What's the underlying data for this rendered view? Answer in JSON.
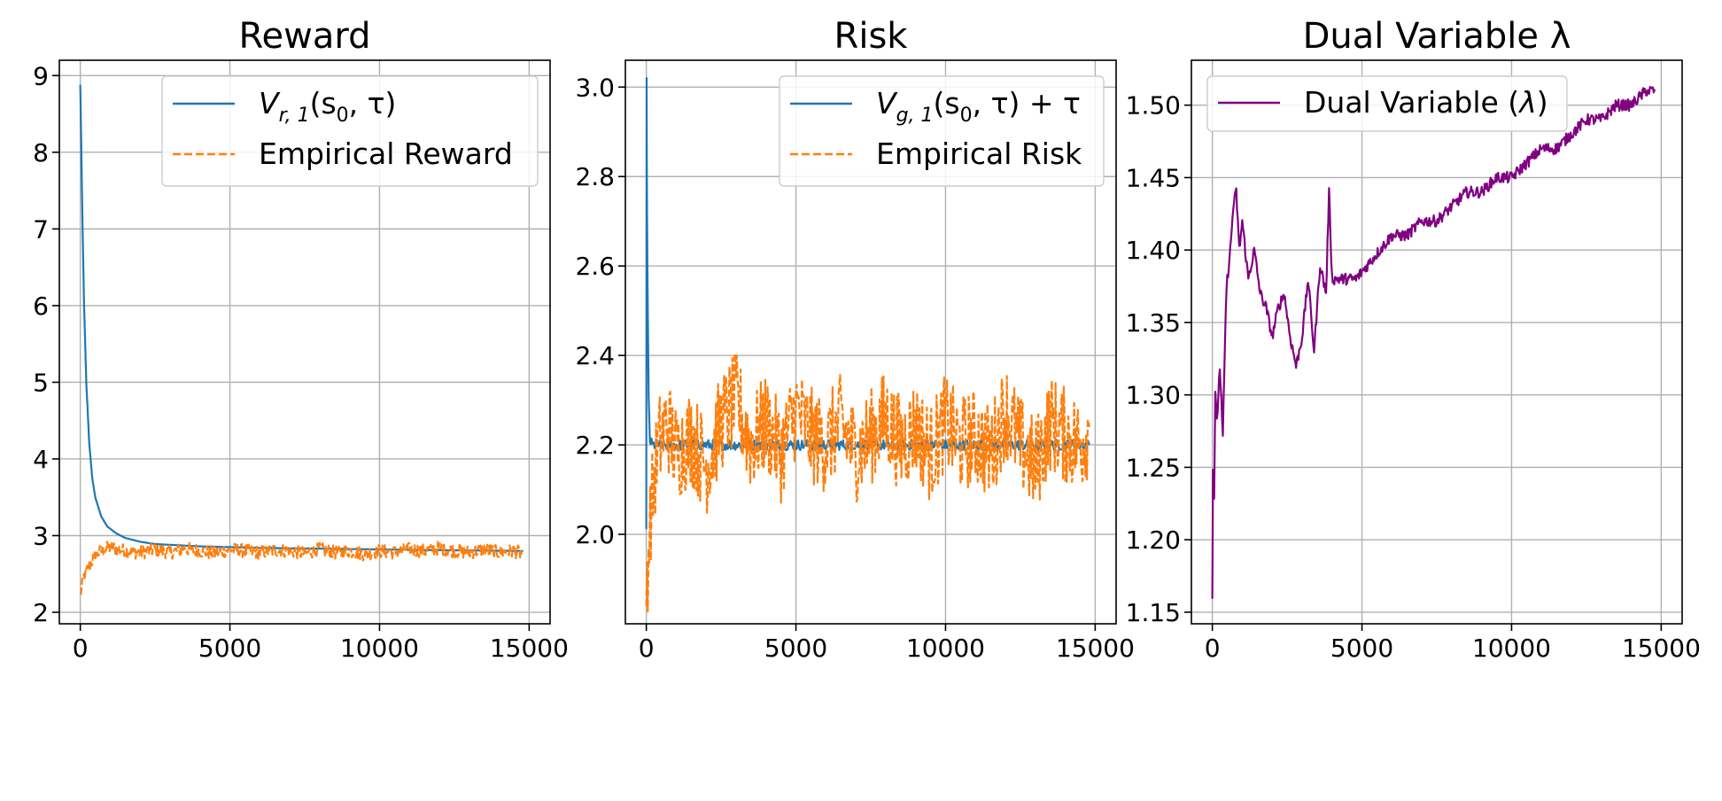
{
  "colors": {
    "blue": "#1f77b4",
    "orange": "#ff7f0e",
    "purple": "#800080",
    "grid": "#b0b0b0"
  },
  "chart_data": [
    {
      "type": "line",
      "title": "Reward",
      "xlabel": "",
      "ylabel": "",
      "xlim": [
        -700,
        15700
      ],
      "ylim": [
        1.85,
        9.2
      ],
      "xticks": [
        0,
        5000,
        10000,
        15000
      ],
      "yticks": [
        2,
        3,
        4,
        5,
        6,
        7,
        8,
        9
      ],
      "xtick_labels": [
        "0",
        "5000",
        "10000",
        "15000"
      ],
      "ytick_labels": [
        "2",
        "3",
        "4",
        "5",
        "6",
        "7",
        "8",
        "9"
      ],
      "grid": true,
      "legend_position": "upper right",
      "series": [
        {
          "name": "V_{r,1}(s_0, τ)",
          "legend_html": [
            "V",
            "r, 1",
            "(s",
            "0",
            ", τ)"
          ],
          "color": "#1f77b4",
          "style": "solid",
          "x": [
            0,
            60,
            120,
            200,
            300,
            400,
            500,
            700,
            900,
            1200,
            1500,
            2000,
            2500,
            3000,
            4000,
            5000,
            6000,
            8000,
            10000,
            12000,
            14800
          ],
          "y": [
            8.88,
            7.4,
            6.1,
            5.0,
            4.2,
            3.75,
            3.5,
            3.25,
            3.12,
            3.03,
            2.97,
            2.92,
            2.89,
            2.88,
            2.86,
            2.85,
            2.84,
            2.83,
            2.82,
            2.81,
            2.8
          ]
        },
        {
          "name": "Empirical Reward",
          "color": "#ff7f0e",
          "style": "dashed",
          "x": [
            0,
            100,
            300,
            500,
            700,
            1000,
            1500,
            2000,
            2500,
            3000,
            3500,
            4000,
            4500,
            5000,
            5500,
            6000,
            6500,
            7000,
            7500,
            8000,
            8500,
            9000,
            9500,
            10000,
            10500,
            11000,
            11500,
            12000,
            12500,
            13000,
            13500,
            14000,
            14500,
            14800
          ],
          "y": [
            2.22,
            2.45,
            2.6,
            2.75,
            2.8,
            2.85,
            2.8,
            2.78,
            2.82,
            2.78,
            2.83,
            2.8,
            2.77,
            2.82,
            2.8,
            2.78,
            2.81,
            2.8,
            2.77,
            2.82,
            2.78,
            2.8,
            2.76,
            2.8,
            2.78,
            2.82,
            2.8,
            2.84,
            2.8,
            2.78,
            2.82,
            2.78,
            2.8,
            2.76
          ],
          "noise": 0.09
        }
      ]
    },
    {
      "type": "line",
      "title": "Risk",
      "xlabel": "",
      "ylabel": "",
      "xlim": [
        -700,
        15700
      ],
      "ylim": [
        1.8,
        3.06
      ],
      "xticks": [
        0,
        5000,
        10000,
        15000
      ],
      "yticks": [
        2.0,
        2.2,
        2.4,
        2.6,
        2.8,
        3.0
      ],
      "xtick_labels": [
        "0",
        "5000",
        "10000",
        "15000"
      ],
      "ytick_labels": [
        "2.0",
        "2.2",
        "2.4",
        "2.6",
        "2.8",
        "3.0"
      ],
      "grid": true,
      "legend_position": "upper right",
      "series": [
        {
          "name": "V_{g,1}(s_0, τ) + τ",
          "legend_html": [
            "V",
            "g, 1",
            "(s",
            "0",
            ", τ) + τ"
          ],
          "color": "#1f77b4",
          "style": "solid",
          "x": [
            0,
            10,
            25,
            50,
            80,
            120,
            200,
            400,
            1000,
            3000,
            6000,
            9000,
            12000,
            14800
          ],
          "y": [
            2.0,
            3.01,
            2.7,
            2.5,
            2.3,
            2.21,
            2.2,
            2.2,
            2.2,
            2.2,
            2.2,
            2.2,
            2.2,
            2.2
          ],
          "noise": 0.012
        },
        {
          "name": "Empirical Risk",
          "color": "#ff7f0e",
          "style": "dashed",
          "x": [
            0,
            150,
            400,
            700,
            1000,
            1500,
            2000,
            2500,
            3000,
            3500,
            4000,
            4500,
            5000,
            5500,
            6000,
            6500,
            7000,
            7500,
            8000,
            8500,
            9000,
            9500,
            10000,
            10500,
            11000,
            11500,
            12000,
            12500,
            13000,
            13500,
            14000,
            14500,
            14800
          ],
          "y": [
            1.88,
            2.05,
            2.2,
            2.25,
            2.18,
            2.22,
            2.15,
            2.25,
            2.3,
            2.2,
            2.25,
            2.18,
            2.28,
            2.22,
            2.2,
            2.25,
            2.18,
            2.22,
            2.26,
            2.2,
            2.24,
            2.18,
            2.25,
            2.2,
            2.22,
            2.18,
            2.28,
            2.2,
            2.15,
            2.25,
            2.22,
            2.2,
            2.24
          ],
          "noise": 0.11
        }
      ]
    },
    {
      "type": "line",
      "title": "Dual Variable λ",
      "xlabel": "",
      "ylabel": "",
      "xlim": [
        -700,
        15700
      ],
      "ylim": [
        1.142,
        1.531
      ],
      "xticks": [
        0,
        5000,
        10000,
        15000
      ],
      "yticks": [
        1.15,
        1.2,
        1.25,
        1.3,
        1.35,
        1.4,
        1.45,
        1.5
      ],
      "xtick_labels": [
        "0",
        "5000",
        "10000",
        "15000"
      ],
      "ytick_labels": [
        "1.15",
        "1.20",
        "1.25",
        "1.30",
        "1.35",
        "1.40",
        "1.45",
        "1.50"
      ],
      "grid": true,
      "legend_position": "upper left",
      "series": [
        {
          "name": "Dual Variable (λ)",
          "legend_html": [
            "Dual Variable (",
            "λ",
            ")"
          ],
          "color": "#800080",
          "style": "solid",
          "x": [
            0,
            20,
            60,
            100,
            150,
            250,
            350,
            450,
            500,
            600,
            700,
            800,
            900,
            1000,
            1200,
            1400,
            1600,
            1800,
            2000,
            2200,
            2400,
            2600,
            2800,
            3000,
            3200,
            3400,
            3600,
            3800,
            3900,
            4000,
            4200,
            4500,
            4800,
            5200,
            5600,
            6000,
            6500,
            7000,
            7500,
            8000,
            8500,
            9000,
            9500,
            10000,
            10500,
            11000,
            11500,
            12000,
            12500,
            13000,
            13500,
            14000,
            14500,
            14800
          ],
          "y": [
            1.16,
            1.25,
            1.23,
            1.3,
            1.28,
            1.32,
            1.27,
            1.36,
            1.38,
            1.4,
            1.43,
            1.44,
            1.4,
            1.42,
            1.38,
            1.4,
            1.37,
            1.36,
            1.34,
            1.36,
            1.37,
            1.34,
            1.32,
            1.34,
            1.38,
            1.33,
            1.39,
            1.37,
            1.44,
            1.38,
            1.38,
            1.38,
            1.38,
            1.39,
            1.4,
            1.41,
            1.41,
            1.42,
            1.42,
            1.43,
            1.44,
            1.44,
            1.45,
            1.45,
            1.46,
            1.47,
            1.47,
            1.48,
            1.49,
            1.49,
            1.5,
            1.5,
            1.51,
            1.51
          ],
          "noise": 0.004
        }
      ]
    }
  ]
}
